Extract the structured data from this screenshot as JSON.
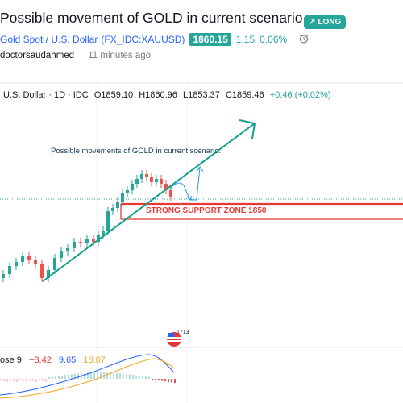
{
  "idea": {
    "title": "Possible movement of GOLD in current scenario.",
    "badge": "LONG"
  },
  "symbol": {
    "name": "Gold Spot / U.S. Dollar",
    "ticker": "(FX_IDC:XAUUSD)",
    "price": "1860.15",
    "change": "1.15",
    "change_pct": "0.06%"
  },
  "author": {
    "name": "doctorsaudahmed",
    "time_ago": "11 minutes ago"
  },
  "legend": {
    "symbol": "U.S. Dollar · 1D · IDC",
    "open": "O1859.10",
    "high": "H1860.96",
    "low": "L1853.37",
    "close": "C1859.46",
    "change": "+0.46 (+0.02%)"
  },
  "annotations": {
    "note": "Possible movements of GOLD in current scenario.",
    "support": "STRONG SUPPORT ZONE 1850",
    "event_count": "1713"
  },
  "macd": {
    "label": "ose 9",
    "value1": "−8.42",
    "value2": "9.65",
    "value3": "18.07",
    "colors": {
      "v1": "#e53935",
      "v2": "#2962ff",
      "v3": "#f5a623"
    }
  },
  "colors": {
    "up": "#26a69a",
    "down": "#ef5350",
    "trendline": "#11a08a",
    "support": "#e53935",
    "projection": "#2196f3"
  }
}
